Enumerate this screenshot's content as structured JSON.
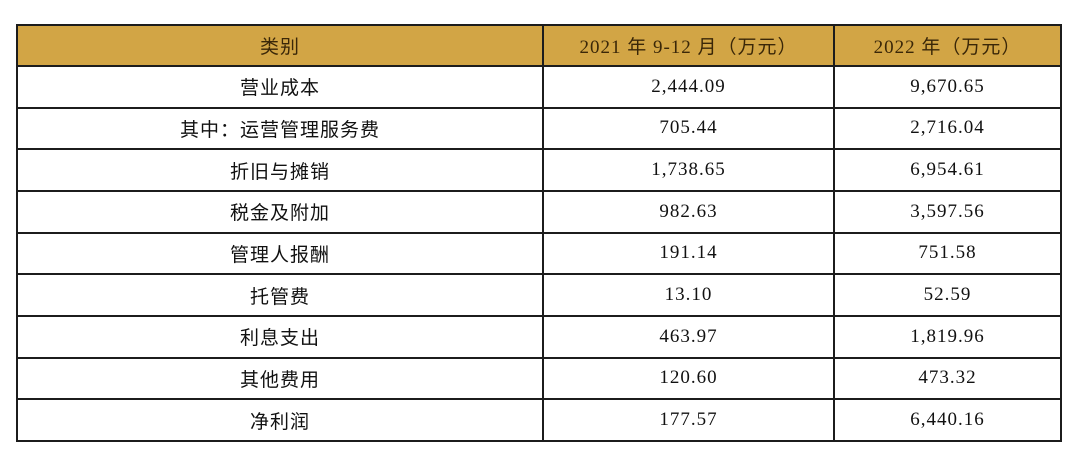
{
  "colors": {
    "header_background": "#d2a545",
    "header_text": "#3a2708",
    "body_text": "#111111",
    "border": "#1c1c1c",
    "page_background": "#ffffff"
  },
  "table": {
    "headers": {
      "category": "类别",
      "period_2021": "2021 年 9-12 月（万元）",
      "period_2022": "2022 年（万元）"
    },
    "rows": [
      {
        "label": "营业成本",
        "v2021": "2,444.09",
        "v2022": "9,670.65"
      },
      {
        "label": "其中：运营管理服务费",
        "v2021": "705.44",
        "v2022": "2,716.04"
      },
      {
        "label": "折旧与摊销",
        "v2021": "1,738.65",
        "v2022": "6,954.61"
      },
      {
        "label": "税金及附加",
        "v2021": "982.63",
        "v2022": "3,597.56"
      },
      {
        "label": "管理人报酬",
        "v2021": "191.14",
        "v2022": "751.58"
      },
      {
        "label": "托管费",
        "v2021": "13.10",
        "v2022": "52.59"
      },
      {
        "label": "利息支出",
        "v2021": "463.97",
        "v2022": "1,819.96"
      },
      {
        "label": "其他费用",
        "v2021": "120.60",
        "v2022": "473.32"
      },
      {
        "label": "净利润",
        "v2021": "177.57",
        "v2022": "6,440.16"
      }
    ]
  }
}
